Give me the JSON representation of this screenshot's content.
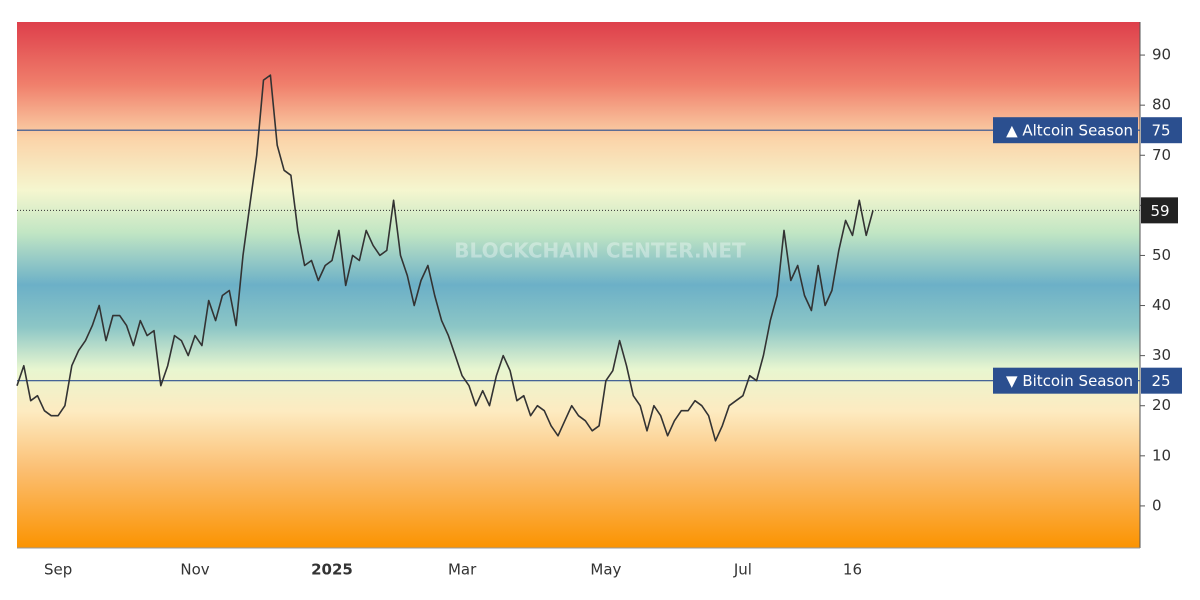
{
  "chart_data": {
    "type": "line",
    "watermark": "BLOCKCHAIN CENTER.NET",
    "categories": [
      null,
      null,
      null,
      null,
      null,
      null,
      "Sep",
      null,
      null,
      null,
      null,
      null,
      null,
      null,
      null,
      null,
      null,
      null,
      null,
      null,
      null,
      null,
      null,
      null,
      null,
      null,
      "Nov",
      null,
      null,
      null,
      null,
      null,
      null,
      null,
      null,
      null,
      null,
      null,
      null,
      null,
      null,
      null,
      null,
      null,
      null,
      null,
      "2025",
      null,
      null,
      null,
      null,
      null,
      null,
      null,
      null,
      null,
      null,
      null,
      null,
      null,
      null,
      null,
      null,
      null,
      null,
      "Mar",
      null,
      null,
      null,
      null,
      null,
      null,
      null,
      null,
      null,
      null,
      null,
      null,
      null,
      null,
      null,
      null,
      null,
      null,
      null,
      null,
      "May",
      null,
      null,
      null,
      null,
      null,
      null,
      null,
      null,
      null,
      null,
      null,
      null,
      null,
      null,
      null,
      null,
      null,
      null,
      null,
      "Jul",
      null,
      null,
      null,
      null,
      null,
      null,
      null,
      null,
      null,
      null,
      null,
      null,
      null,
      null,
      null,
      "16",
      null,
      null,
      null
    ],
    "values": [
      24,
      28,
      21,
      22,
      19,
      18,
      18,
      20,
      28,
      31,
      33,
      36,
      40,
      33,
      38,
      38,
      36,
      32,
      37,
      34,
      35,
      24,
      28,
      34,
      33,
      30,
      34,
      32,
      41,
      37,
      42,
      43,
      36,
      50,
      60,
      70,
      85,
      86,
      72,
      67,
      66,
      55,
      48,
      49,
      45,
      48,
      49,
      55,
      44,
      50,
      49,
      55,
      52,
      50,
      51,
      61,
      50,
      46,
      40,
      45,
      48,
      42,
      37,
      34,
      30,
      26,
      24,
      20,
      23,
      20,
      26,
      30,
      27,
      21,
      22,
      18,
      20,
      19,
      16,
      14,
      17,
      20,
      18,
      17,
      15,
      16,
      25,
      27,
      33,
      28,
      22,
      20,
      15,
      20,
      18,
      14,
      17,
      19,
      19,
      21,
      20,
      18,
      13,
      16,
      20,
      21,
      22,
      26,
      25,
      30,
      37,
      42,
      55,
      45,
      48,
      42,
      39,
      48,
      40,
      43,
      51,
      57,
      54,
      61,
      54,
      59
    ],
    "color": "#333333",
    "ylim": [
      -8.4,
      96.6
    ],
    "yticks": [
      0,
      10,
      20,
      30,
      40,
      50,
      60,
      70,
      80,
      90
    ],
    "thresholds": [
      {
        "label": "▲ Altcoin Season",
        "value": 75,
        "color": "#2b4f8f"
      },
      {
        "label": "▼ Bitcoin Season",
        "value": 25,
        "color": "#2b4f8f"
      }
    ],
    "current": 59
  }
}
